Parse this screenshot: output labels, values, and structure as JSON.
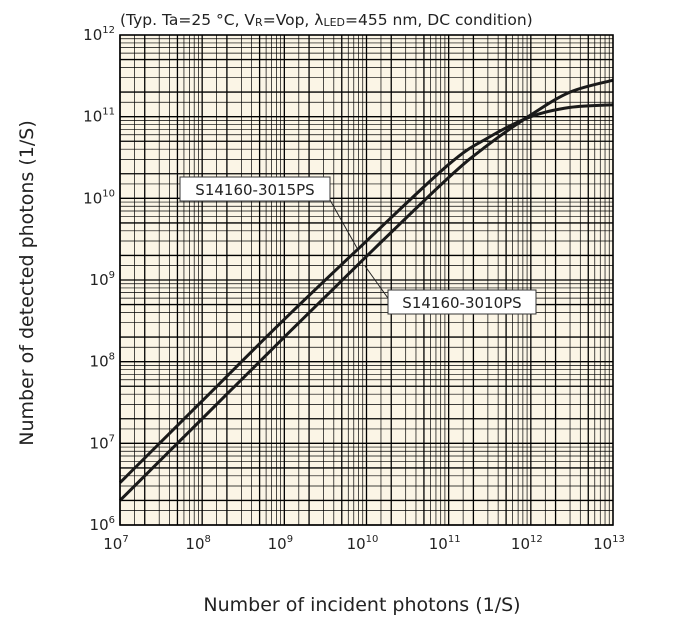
{
  "chart_data": {
    "type": "line",
    "title": "",
    "condition": {
      "prefix": "(Typ. Ta=25 °C, V",
      "vr_sub": "R",
      "mid": "=Vop, λ",
      "led_sub": "LED",
      "suffix": "=455 nm, DC condition)"
    },
    "xlabel": "Number of incident photons (1/S)",
    "ylabel": "Number of detected photons (1/S)",
    "xscale": "log",
    "yscale": "log",
    "xlim": [
      10000000.0,
      10000000000000.0
    ],
    "ylim": [
      1000000.0,
      1000000000000.0
    ],
    "grid": true,
    "x_ticks": [
      {
        "base": "10",
        "exp": "7"
      },
      {
        "base": "10",
        "exp": "8"
      },
      {
        "base": "10",
        "exp": "9"
      },
      {
        "base": "10",
        "exp": "10"
      },
      {
        "base": "10",
        "exp": "11"
      },
      {
        "base": "10",
        "exp": "12"
      },
      {
        "base": "10",
        "exp": "13"
      }
    ],
    "y_ticks": [
      {
        "base": "10",
        "exp": "6"
      },
      {
        "base": "10",
        "exp": "7"
      },
      {
        "base": "10",
        "exp": "8"
      },
      {
        "base": "10",
        "exp": "9"
      },
      {
        "base": "10",
        "exp": "10"
      },
      {
        "base": "10",
        "exp": "11"
      },
      {
        "base": "10",
        "exp": "12"
      }
    ],
    "series": [
      {
        "name": "S14160-3015PS",
        "x": [
          10000000.0,
          100000000.0,
          1000000000.0,
          10000000000.0,
          100000000000.0,
          300000000000.0,
          1000000000000.0,
          3000000000000.0,
          10000000000000.0
        ],
        "y": [
          3300000.0,
          33000000.0,
          330000000.0,
          3000000000.0,
          26000000000.0,
          55000000000.0,
          100000000000.0,
          130000000000.0,
          140000000000.0
        ]
      },
      {
        "name": "S14160-3010PS",
        "x": [
          10000000.0,
          100000000.0,
          1000000000.0,
          10000000000.0,
          100000000000.0,
          300000000000.0,
          1000000000000.0,
          3000000000000.0,
          10000000000000.0
        ],
        "y": [
          2000000.0,
          20000000.0,
          200000000.0,
          1950000000.0,
          18000000000.0,
          45000000000.0,
          105000000000.0,
          200000000000.0,
          280000000000.0
        ]
      }
    ]
  }
}
